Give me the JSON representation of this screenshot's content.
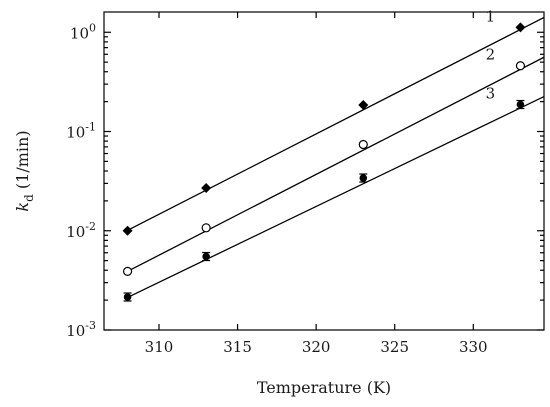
{
  "chart_data": {
    "type": "scatter",
    "title": "",
    "xlabel": "Temperature (K)",
    "ylabel_main": "k",
    "ylabel_sub": "d",
    "ylabel_unit": " (1/min)",
    "xlim": [
      306.5,
      334.5
    ],
    "ylim": [
      0.001,
      1.6
    ],
    "yscale": "log",
    "grid": false,
    "x_ticks": [
      310,
      315,
      320,
      325,
      330
    ],
    "x_tick_labels": [
      "310",
      "315",
      "320",
      "325",
      "330"
    ],
    "y_ticks": [
      0.001,
      0.01,
      0.1,
      1
    ],
    "y_tick_labels": [
      {
        "base": "10",
        "exp": "-3"
      },
      {
        "base": "10",
        "exp": "-2"
      },
      {
        "base": "10",
        "exp": "-1"
      },
      {
        "base": "10",
        "exp": "0"
      }
    ],
    "series": [
      {
        "name": "1",
        "marker": "diamond-filled",
        "x": [
          308,
          313,
          323,
          333
        ],
        "y": [
          0.01,
          0.027,
          0.185,
          1.12
        ],
        "fit_x": [
          308,
          334.5
        ],
        "fit_y": [
          0.0101,
          1.41
        ]
      },
      {
        "name": "2",
        "marker": "circle-open",
        "x": [
          308,
          313,
          323,
          333
        ],
        "y": [
          0.0039,
          0.0107,
          0.074,
          0.46
        ],
        "fit_x": [
          308,
          334.5
        ],
        "fit_y": [
          0.0039,
          0.56
        ]
      },
      {
        "name": "3",
        "marker": "circle-filled",
        "x": [
          308,
          313,
          323,
          333
        ],
        "y": [
          0.00215,
          0.0055,
          0.034,
          0.187
        ],
        "fit_x": [
          308,
          334.5
        ],
        "fit_y": [
          0.00213,
          0.225
        ]
      }
    ]
  }
}
